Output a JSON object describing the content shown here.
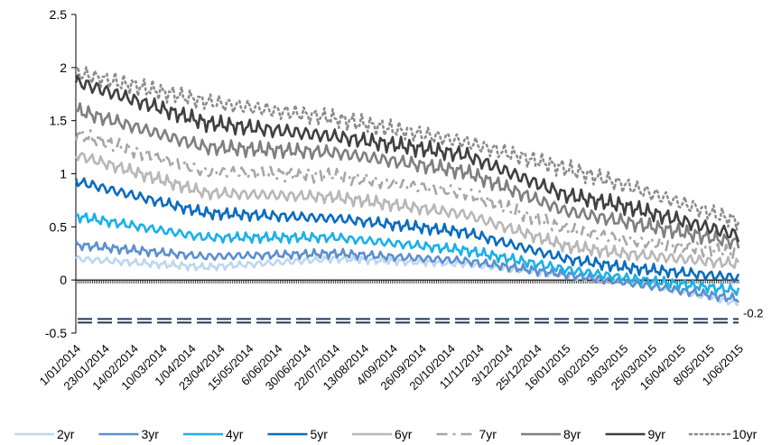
{
  "chart_data": {
    "type": "line",
    "title": "",
    "xlabel": "",
    "ylabel": "",
    "ylim": [
      -0.5,
      2.5
    ],
    "yticks": [
      "-0.5",
      "0",
      "0.5",
      "1",
      "1.5",
      "2",
      "2.5"
    ],
    "grid": false,
    "legend_position": "bottom",
    "x_tick_labels": [
      "1/01/2014",
      "23/01/2014",
      "14/02/2014",
      "10/03/2014",
      "1/04/2014",
      "23/04/2014",
      "15/05/2014",
      "6/06/2014",
      "30/06/2014",
      "22/07/2014",
      "13/08/2014",
      "4/09/2014",
      "26/09/2014",
      "20/10/2014",
      "11/11/2014",
      "3/12/2014",
      "25/12/2014",
      "16/01/2015",
      "9/02/2015",
      "3/03/2015",
      "25/03/2015",
      "16/04/2015",
      "8/05/2015",
      "1/06/2015"
    ],
    "x_keys": [
      0,
      4.5,
      9,
      13.5,
      17,
      19,
      23
    ],
    "reference_line": {
      "value": -0.2,
      "label": "-0.2",
      "color": "#1f3864"
    },
    "series": [
      {
        "name": "2yr",
        "color": "#bdd7ee",
        "dash": "solid",
        "values": [
          0.2,
          0.12,
          0.2,
          0.15,
          0.05,
          0.0,
          -0.22
        ]
      },
      {
        "name": "3yr",
        "color": "#5b8fd0",
        "dash": "solid",
        "values": [
          0.33,
          0.22,
          0.25,
          0.18,
          0.05,
          -0.02,
          -0.18
        ]
      },
      {
        "name": "4yr",
        "color": "#1ab0e8",
        "dash": "solid",
        "values": [
          0.6,
          0.4,
          0.4,
          0.28,
          0.1,
          0.02,
          -0.1
        ]
      },
      {
        "name": "5yr",
        "color": "#0b6bbf",
        "dash": "solid",
        "values": [
          0.93,
          0.63,
          0.58,
          0.45,
          0.2,
          0.12,
          0.02
        ]
      },
      {
        "name": "6yr",
        "color": "#b7b7b7",
        "dash": "solid",
        "values": [
          1.18,
          0.82,
          0.78,
          0.62,
          0.32,
          0.25,
          0.15
        ]
      },
      {
        "name": "7yr",
        "color": "#a6a6a6",
        "dash": "dashdot",
        "values": [
          1.38,
          1.02,
          0.98,
          0.82,
          0.48,
          0.38,
          0.25
        ]
      },
      {
        "name": "8yr",
        "color": "#7f7f7f",
        "dash": "solid",
        "values": [
          1.6,
          1.25,
          1.2,
          1.02,
          0.65,
          0.55,
          0.35
        ]
      },
      {
        "name": "9yr",
        "color": "#404040",
        "dash": "solid",
        "values": [
          1.87,
          1.48,
          1.35,
          1.18,
          0.8,
          0.7,
          0.42
        ]
      },
      {
        "name": "10yr",
        "color": "#8c8c8c",
        "dash": "dotted",
        "values": [
          1.95,
          1.68,
          1.52,
          1.3,
          1.05,
          0.9,
          0.55
        ]
      }
    ]
  }
}
